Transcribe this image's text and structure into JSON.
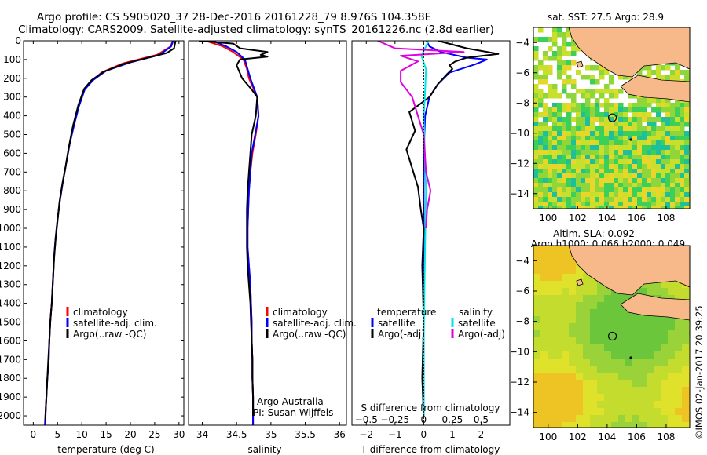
{
  "header": {
    "line1": "Argo profile: CS 5905020_37 28-Dec-2016 20161228_79 8.976S 104.358E",
    "line2": "Climatology: CARS2009. Satellite-adjusted climatology: synTS_20161226.nc (2.8d earlier)"
  },
  "credit": "©IMOS 02-Jan-2017 20:39:25",
  "colors": {
    "climatology": "#ff0000",
    "satellite": "#0000ff",
    "argo": "#000000",
    "s_satellite": "#00e5e5",
    "s_argo": "#e000e0",
    "land": "#f7b98a"
  },
  "chart_data": [
    {
      "type": "line",
      "name": "temperature-profile",
      "xlabel": "temperature (deg C)",
      "ylabel": "",
      "xlim": [
        -2,
        31
      ],
      "ylim": [
        2050,
        0
      ],
      "xticks": [
        0,
        5,
        10,
        15,
        20,
        25,
        30
      ],
      "yticks": [
        0,
        100,
        200,
        300,
        400,
        500,
        600,
        700,
        800,
        900,
        1000,
        1100,
        1200,
        1300,
        1400,
        1500,
        1600,
        1700,
        1800,
        1900,
        2000
      ],
      "legend": [
        "climatology",
        "satellite-adj. clim.",
        "Argo(..raw -QC)"
      ],
      "legend_position": "lower-left",
      "series": [
        {
          "name": "climatology",
          "color": "#ff0000",
          "points": [
            [
              28.7,
              0
            ],
            [
              28.3,
              30
            ],
            [
              25.5,
              75
            ],
            [
              18.5,
              120
            ],
            [
              14,
              170
            ],
            [
              11.5,
              230
            ],
            [
              10.3,
              270
            ],
            [
              9.3,
              350
            ],
            [
              8.3,
              450
            ],
            [
              7.5,
              550
            ],
            [
              6.8,
              650
            ],
            [
              6.1,
              750
            ],
            [
              5.5,
              850
            ],
            [
              5,
              950
            ],
            [
              4.6,
              1050
            ],
            [
              4.3,
              1150
            ],
            [
              4.1,
              1250
            ],
            [
              3.8,
              1400
            ],
            [
              3.5,
              1500
            ],
            [
              3.3,
              1600
            ],
            [
              3.2,
              1700
            ],
            [
              2.9,
              1800
            ],
            [
              2.7,
              1900
            ],
            [
              2.5,
              2000
            ],
            [
              2.4,
              2050
            ]
          ]
        },
        {
          "name": "satellite-adj. clim.",
          "color": "#0000ff",
          "points": [
            [
              28.8,
              0
            ],
            [
              28.4,
              30
            ],
            [
              26,
              75
            ],
            [
              20,
              115
            ],
            [
              15,
              160
            ],
            [
              12.3,
              210
            ],
            [
              10.6,
              260
            ],
            [
              9.4,
              350
            ],
            [
              8.4,
              450
            ],
            [
              7.5,
              550
            ],
            [
              6.8,
              650
            ],
            [
              6.1,
              750
            ],
            [
              5.5,
              850
            ],
            [
              5,
              950
            ],
            [
              4.6,
              1050
            ],
            [
              4.3,
              1150
            ],
            [
              4.1,
              1250
            ],
            [
              3.8,
              1400
            ],
            [
              3.5,
              1500
            ],
            [
              3.3,
              1600
            ],
            [
              3.2,
              1700
            ],
            [
              2.9,
              1800
            ],
            [
              2.7,
              1900
            ],
            [
              2.5,
              2000
            ],
            [
              2.4,
              2050
            ]
          ]
        },
        {
          "name": "Argo(..raw -QC)",
          "color": "#000000",
          "points": [
            [
              29.3,
              0
            ],
            [
              29,
              40
            ],
            [
              27.5,
              65
            ],
            [
              24.5,
              85
            ],
            [
              19,
              120
            ],
            [
              14.5,
              165
            ],
            [
              12,
              210
            ],
            [
              10.5,
              255
            ],
            [
              9.3,
              340
            ],
            [
              8.2,
              450
            ],
            [
              7.3,
              570
            ],
            [
              6.6,
              680
            ],
            [
              6,
              760
            ],
            [
              5.4,
              860
            ],
            [
              5,
              960
            ],
            [
              4.6,
              1060
            ],
            [
              4.3,
              1160
            ],
            [
              4.1,
              1260
            ],
            [
              3.8,
              1400
            ],
            [
              3.5,
              1500
            ],
            [
              3.3,
              1600
            ],
            [
              3.1,
              1700
            ],
            [
              2.9,
              1800
            ],
            [
              2.6,
              1950
            ],
            [
              2.5,
              2030
            ]
          ]
        }
      ]
    },
    {
      "type": "line",
      "name": "salinity-profile",
      "xlabel": "salinity",
      "ylabel": "",
      "xlim": [
        33.8,
        36.1
      ],
      "ylim": [
        2050,
        0
      ],
      "xticks": [
        34,
        34.5,
        35,
        35.5,
        36
      ],
      "xtick_labels": [
        "34",
        "34.5",
        "35",
        "35.5",
        "36"
      ],
      "legend": [
        "climatology",
        "satellite-adj. clim.",
        "Argo(..raw -QC)"
      ],
      "legend_position": "lower-right",
      "annotation": [
        "Argo Australia",
        "PI: Susan Wijffels"
      ],
      "series": [
        {
          "name": "climatology",
          "color": "#ff0000",
          "points": [
            [
              34.05,
              0
            ],
            [
              34.3,
              30
            ],
            [
              34.45,
              60
            ],
            [
              34.6,
              100
            ],
            [
              34.65,
              150
            ],
            [
              34.68,
              200
            ],
            [
              34.8,
              300
            ],
            [
              34.82,
              400
            ],
            [
              34.78,
              500
            ],
            [
              34.73,
              600
            ],
            [
              34.7,
              700
            ],
            [
              34.68,
              800
            ],
            [
              34.67,
              900
            ],
            [
              34.66,
              1000
            ],
            [
              34.66,
              1100
            ],
            [
              34.68,
              1200
            ],
            [
              34.7,
              1300
            ],
            [
              34.71,
              1400
            ],
            [
              34.72,
              1500
            ],
            [
              34.72,
              1600
            ],
            [
              34.73,
              1700
            ],
            [
              34.73,
              1800
            ],
            [
              34.74,
              1900
            ],
            [
              34.74,
              2000
            ],
            [
              34.74,
              2050
            ]
          ]
        },
        {
          "name": "satellite-adj. clim.",
          "color": "#0000ff",
          "points": [
            [
              34.15,
              0
            ],
            [
              34.35,
              30
            ],
            [
              34.5,
              60
            ],
            [
              34.62,
              100
            ],
            [
              34.66,
              150
            ],
            [
              34.7,
              200
            ],
            [
              34.8,
              300
            ],
            [
              34.82,
              400
            ],
            [
              34.77,
              500
            ],
            [
              34.72,
              600
            ],
            [
              34.7,
              700
            ],
            [
              34.68,
              800
            ],
            [
              34.67,
              900
            ],
            [
              34.66,
              1000
            ],
            [
              34.66,
              1100
            ],
            [
              34.68,
              1200
            ],
            [
              34.7,
              1300
            ],
            [
              34.71,
              1400
            ],
            [
              34.72,
              1500
            ],
            [
              34.72,
              1600
            ],
            [
              34.73,
              1700
            ],
            [
              34.73,
              1800
            ],
            [
              34.74,
              1900
            ],
            [
              34.74,
              2000
            ],
            [
              34.74,
              2050
            ]
          ]
        },
        {
          "name": "Argo(..raw -QC)",
          "color": "#000000",
          "points": [
            [
              33.95,
              0
            ],
            [
              34.45,
              15
            ],
            [
              34.55,
              40
            ],
            [
              34.95,
              60
            ],
            [
              34.85,
              75
            ],
            [
              34.95,
              85
            ],
            [
              34.55,
              100
            ],
            [
              34.5,
              130
            ],
            [
              34.58,
              200
            ],
            [
              34.72,
              260
            ],
            [
              34.8,
              300
            ],
            [
              34.78,
              400
            ],
            [
              34.72,
              500
            ],
            [
              34.7,
              600
            ],
            [
              34.68,
              700
            ],
            [
              34.66,
              800
            ],
            [
              34.65,
              900
            ],
            [
              34.65,
              1000
            ],
            [
              34.65,
              1100
            ],
            [
              34.66,
              1200
            ],
            [
              34.68,
              1300
            ],
            [
              34.7,
              1400
            ],
            [
              34.71,
              1500
            ],
            [
              34.72,
              1600
            ],
            [
              34.73,
              1700
            ],
            [
              34.73,
              1800
            ],
            [
              34.74,
              1900
            ],
            [
              34.74,
              2000
            ]
          ]
        }
      ]
    },
    {
      "type": "line",
      "name": "difference-from-climatology",
      "xlabel": "T difference from climatology",
      "xlabel_top": "S difference from climatology",
      "xlim": [
        -2.5,
        3
      ],
      "ylim": [
        2050,
        0
      ],
      "xticks": [
        -2,
        -1,
        0,
        1,
        2
      ],
      "xticks_top": [
        -0.5,
        -0.25,
        0,
        0.25,
        0.5
      ],
      "legend_headers": [
        "temperature",
        "salinity"
      ],
      "legend": [
        "satellite",
        "Argo(-adj)",
        "satellite",
        "Argo(-adj)"
      ],
      "legend_position": "lower-center",
      "series": [
        {
          "name": "satellite",
          "quantity": "temperature",
          "color": "#0000ff",
          "points": [
            [
              0.1,
              0
            ],
            [
              0.2,
              30
            ],
            [
              0.6,
              60
            ],
            [
              1.5,
              90
            ],
            [
              2.2,
              100
            ],
            [
              1.8,
              125
            ],
            [
              0.9,
              170
            ],
            [
              0.5,
              230
            ],
            [
              0.2,
              300
            ],
            [
              0.05,
              400
            ],
            [
              0,
              600
            ],
            [
              0,
              1000
            ],
            [
              0,
              1500
            ],
            [
              0,
              2000
            ]
          ]
        },
        {
          "name": "Argo(-adj)",
          "quantity": "temperature",
          "color": "#000000",
          "points": [
            [
              0.5,
              0
            ],
            [
              1.5,
              40
            ],
            [
              2.6,
              70
            ],
            [
              1.5,
              90
            ],
            [
              1.1,
              110
            ],
            [
              0.9,
              130
            ],
            [
              1,
              150
            ],
            [
              0.8,
              180
            ],
            [
              0.5,
              230
            ],
            [
              0.2,
              300
            ],
            [
              -0.5,
              380
            ],
            [
              -0.3,
              480
            ],
            [
              -0.6,
              580
            ],
            [
              -0.4,
              680
            ],
            [
              -0.2,
              780
            ],
            [
              -0.1,
              900
            ],
            [
              0,
              1000
            ],
            [
              -0.05,
              1200
            ],
            [
              0,
              1500
            ],
            [
              -0.05,
              1800
            ],
            [
              0,
              2000
            ]
          ]
        },
        {
          "name": "satellite",
          "quantity": "salinity",
          "color": "#00e5e5",
          "points": [
            [
              0.04,
              0
            ],
            [
              0.02,
              30
            ],
            [
              -0.02,
              80
            ],
            [
              0.02,
              150
            ],
            [
              0.01,
              300
            ],
            [
              0,
              400
            ],
            [
              0.02,
              800
            ],
            [
              0.01,
              1200
            ],
            [
              0,
              1600
            ],
            [
              0,
              2000
            ]
          ]
        },
        {
          "name": "Argo(-adj)",
          "quantity": "salinity",
          "color": "#e000e0",
          "points": [
            [
              -0.4,
              0
            ],
            [
              -0.25,
              40
            ],
            [
              0.35,
              60
            ],
            [
              -0.2,
              80
            ],
            [
              -0.05,
              110
            ],
            [
              -0.2,
              160
            ],
            [
              -0.2,
              220
            ],
            [
              -0.1,
              300
            ],
            [
              0.0,
              500
            ],
            [
              0.02,
              700
            ],
            [
              0.06,
              800
            ],
            [
              0.03,
              900
            ],
            [
              0.02,
              1000
            ]
          ]
        }
      ]
    },
    {
      "type": "heatmap",
      "name": "sst-map",
      "title": "sat. SST: 27.5 Argo: 28.9",
      "xlim": [
        99,
        109.6
      ],
      "ylim": [
        -15,
        -3
      ],
      "xticks": [
        100,
        102,
        104,
        106,
        108
      ],
      "yticks": [
        -4,
        -6,
        -8,
        -10,
        -12,
        -14
      ],
      "float_position": [
        104.358,
        -8.976
      ]
    },
    {
      "type": "heatmap",
      "name": "sla-map",
      "title": "Altim. SLA: 0.092",
      "subtitle": "Argo h1000: 0.066 h2000: 0.049",
      "xlim": [
        99,
        109.6
      ],
      "ylim": [
        -15,
        -3
      ],
      "xticks": [
        100,
        102,
        104,
        106,
        108
      ],
      "yticks": [
        -4,
        -6,
        -8,
        -10,
        -12,
        -14
      ],
      "float_position": [
        104.358,
        -8.976
      ]
    }
  ]
}
